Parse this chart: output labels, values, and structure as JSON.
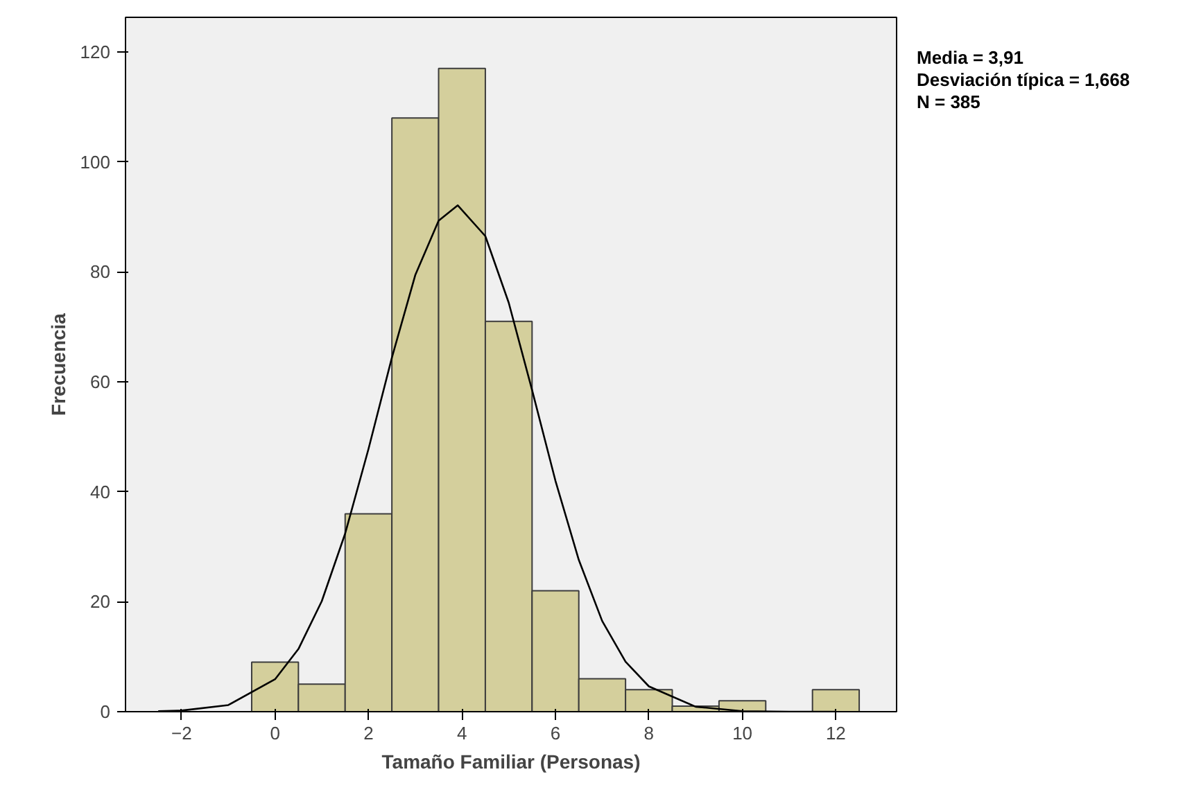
{
  "chart_data": {
    "type": "histogram",
    "xlabel": "Tamaño Familiar (Personas)",
    "ylabel": "Frecuencia",
    "bins": [
      -0.5,
      0.5,
      1.5,
      2.5,
      3.5,
      4.5,
      5.5,
      6.5,
      7.5,
      8.5,
      9.5,
      10.5,
      11.5,
      12.5
    ],
    "values": [
      9,
      5,
      36,
      108,
      117,
      71,
      22,
      6,
      4,
      1,
      2,
      0,
      4
    ],
    "color": "#d4cf9c",
    "series": [
      {
        "type": "line",
        "color": "#000000",
        "x": [
          -2.5,
          -2,
          -1,
          0,
          0.5,
          1,
          1.5,
          2,
          2.5,
          3,
          3.5,
          3.91,
          4.5,
          5,
          5.5,
          6,
          6.5,
          7,
          7.5,
          8,
          9,
          10,
          11,
          12
        ],
        "values": [
          0.1,
          0.2,
          1.2,
          5.9,
          11.4,
          20.1,
          32.4,
          47.8,
          64.4,
          79.4,
          89.3,
          92.1,
          86.5,
          74.4,
          58.5,
          42.0,
          27.6,
          16.5,
          9.1,
          4.6,
          0.9,
          0.1,
          0,
          0
        ]
      }
    ],
    "xlim": [
      -3.2,
      13.3
    ],
    "ylim": [
      0,
      126.3
    ],
    "xticks": [
      -2,
      0,
      2,
      4,
      6,
      8,
      10,
      12
    ],
    "yticks": [
      0,
      20,
      40,
      60,
      80,
      100,
      120
    ],
    "annotations": [
      "Media = 3,91",
      "Desviación típica = 1,668",
      "N = 385"
    ]
  }
}
